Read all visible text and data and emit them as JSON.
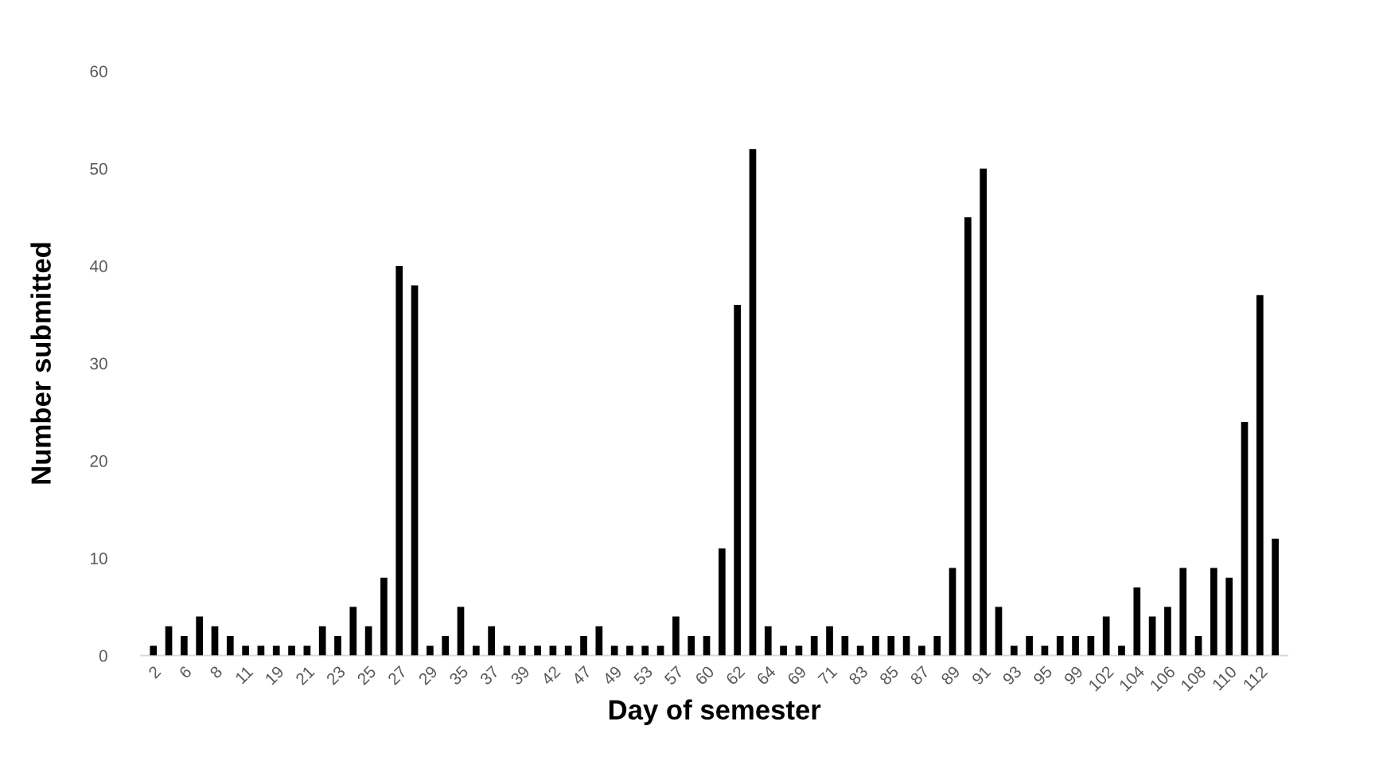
{
  "chart_data": {
    "type": "bar",
    "xlabel": "Day of semester",
    "ylabel": "Number submitted",
    "categories": [
      "2",
      null,
      "6",
      null,
      "8",
      null,
      "11",
      null,
      "19",
      null,
      "21",
      null,
      "23",
      null,
      "25",
      null,
      "27",
      null,
      "29",
      null,
      "35",
      null,
      "37",
      null,
      "39",
      null,
      "42",
      null,
      "47",
      null,
      "49",
      null,
      "53",
      null,
      "57",
      null,
      "60",
      null,
      "62",
      null,
      "64",
      null,
      "69",
      null,
      "71",
      null,
      "83",
      null,
      "85",
      null,
      "87",
      null,
      "89",
      null,
      "91",
      null,
      "93",
      null,
      "95",
      null,
      "99",
      null,
      "102",
      null,
      "104",
      null,
      "106",
      null,
      "108",
      null,
      "110",
      null,
      "112",
      null
    ],
    "values": [
      1,
      3,
      2,
      4,
      3,
      2,
      1,
      1,
      1,
      1,
      1,
      3,
      2,
      5,
      3,
      8,
      40,
      38,
      1,
      2,
      5,
      1,
      3,
      1,
      1,
      1,
      1,
      1,
      2,
      3,
      1,
      1,
      1,
      1,
      4,
      2,
      2,
      11,
      36,
      52,
      3,
      1,
      1,
      2,
      3,
      2,
      1,
      2,
      2,
      2,
      1,
      2,
      9,
      45,
      50,
      5,
      1,
      2,
      1,
      2,
      2,
      2,
      4,
      1,
      7,
      4,
      5,
      9,
      2,
      9,
      8,
      24,
      37,
      12
    ],
    "color": "#000000",
    "ylim": [
      0,
      60
    ],
    "yticks": [
      0,
      10,
      20,
      30,
      40,
      50,
      60
    ],
    "grid": false
  }
}
